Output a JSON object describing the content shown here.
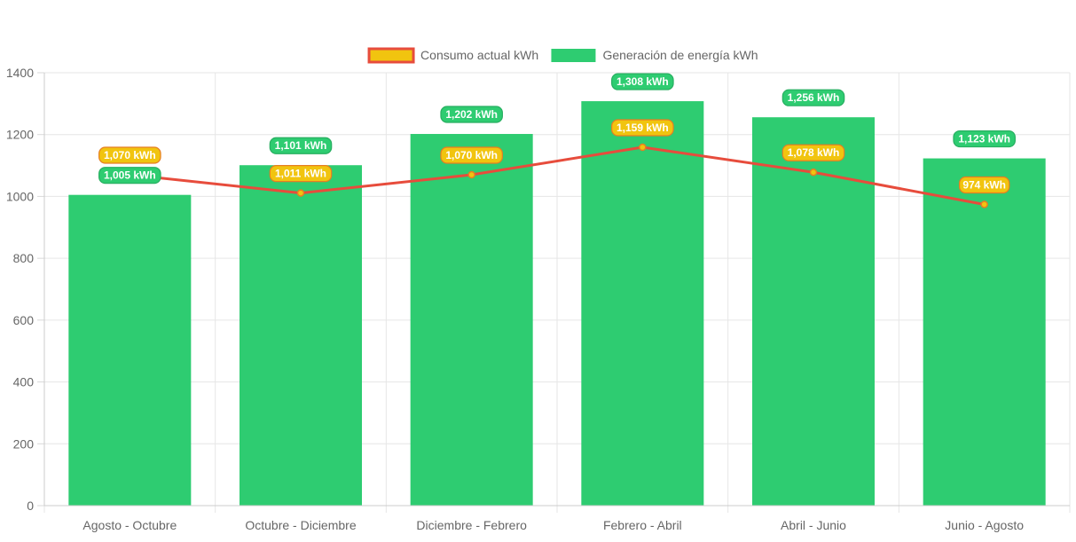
{
  "chart_data": {
    "type": "bar",
    "title": "",
    "xlabel": "",
    "ylabel": "",
    "ylim": [
      0,
      1400
    ],
    "yticks": [
      0,
      200,
      400,
      600,
      800,
      1000,
      1200,
      1400
    ],
    "ytick_labels": [
      "0",
      "200",
      "400",
      "600",
      "800",
      "1000",
      "1200",
      "1400"
    ],
    "grid": true,
    "legend_position": "top-center",
    "categories": [
      "Agosto - Octubre",
      "Octubre - Diciembre",
      "Diciembre - Febrero",
      "Febrero - Abril",
      "Abril - Junio",
      "Junio - Agosto"
    ],
    "series": [
      {
        "name": "Consumo actual kWh",
        "type": "line",
        "color": "#e74c3c",
        "fill_color": "#f1c40f",
        "values": [
          1070,
          1011,
          1070,
          1159,
          1078,
          974
        ],
        "data_labels": [
          "1,070 kWh",
          "1,011 kWh",
          "1,070 kWh",
          "1,159 kWh",
          "1,078 kWh",
          "974 kWh"
        ]
      },
      {
        "name": "Generación de energía kWh",
        "type": "bar",
        "color": "#2ecc71",
        "border_color": "#27ae60",
        "values": [
          1005,
          1101,
          1202,
          1308,
          1256,
          1123
        ],
        "data_labels": [
          "1,005 kWh",
          "1,101 kWh",
          "1,202 kWh",
          "1,308 kWh",
          "1,256 kWh",
          "1,123 kWh"
        ]
      }
    ]
  }
}
